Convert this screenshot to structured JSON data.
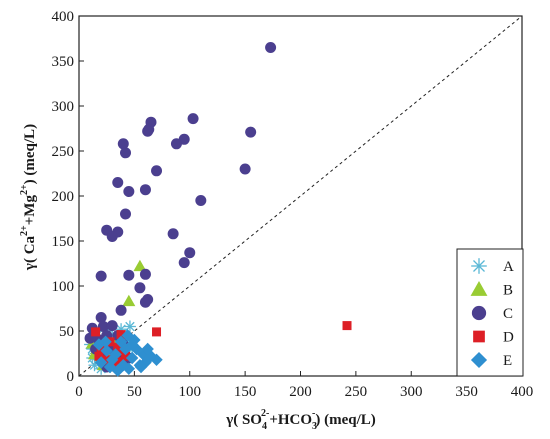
{
  "chart_data": {
    "type": "scatter",
    "title": "",
    "xlabel": {
      "prefix": "γ( SO",
      "sub1": "4",
      "sup1": "2-",
      "mid": "+HCO",
      "sub2": "3",
      "sup2": "-",
      "suffix": ") (meq/L)"
    },
    "ylabel": {
      "prefix": "γ( Ca",
      "sup1": "2+",
      "mid": "+Mg",
      "sup2": "2+",
      "suffix": ") (meq/L)"
    },
    "xlim": [
      0,
      400
    ],
    "ylim": [
      0,
      400
    ],
    "x_ticks": [
      0,
      50,
      100,
      150,
      200,
      250,
      300,
      350,
      400
    ],
    "y_ticks": [
      0,
      50,
      100,
      150,
      200,
      250,
      300,
      350,
      400
    ],
    "grid": false,
    "legend_position": "bottom-right",
    "reference_line": {
      "style": "dashed",
      "x": [
        0,
        400
      ],
      "y": [
        0,
        400
      ]
    },
    "series": [
      {
        "name": "A",
        "marker": "asterisk",
        "color": "#5bb8d6",
        "points": [
          [
            10,
            35
          ],
          [
            12,
            30
          ],
          [
            14,
            40
          ],
          [
            15,
            25
          ],
          [
            16,
            45
          ],
          [
            18,
            33
          ],
          [
            18,
            20
          ],
          [
            20,
            38
          ],
          [
            20,
            28
          ],
          [
            22,
            42
          ],
          [
            22,
            15
          ],
          [
            24,
            30
          ],
          [
            25,
            50
          ],
          [
            26,
            22
          ],
          [
            28,
            36
          ],
          [
            28,
            10
          ],
          [
            30,
            26
          ],
          [
            30,
            45
          ],
          [
            32,
            18
          ],
          [
            33,
            30
          ],
          [
            35,
            40
          ],
          [
            36,
            22
          ],
          [
            38,
            52
          ],
          [
            40,
            28
          ],
          [
            42,
            35
          ],
          [
            44,
            42
          ],
          [
            46,
            55
          ],
          [
            12,
            20
          ],
          [
            14,
            12
          ],
          [
            16,
            28
          ],
          [
            20,
            8
          ],
          [
            24,
            18
          ],
          [
            26,
            40
          ],
          [
            30,
            35
          ],
          [
            34,
            12
          ],
          [
            38,
            38
          ],
          [
            42,
            20
          ],
          [
            48,
            30
          ]
        ]
      },
      {
        "name": "B",
        "marker": "triangle",
        "color": "#99cc33",
        "points": [
          [
            55,
            122
          ],
          [
            45,
            83
          ],
          [
            12,
            36
          ],
          [
            18,
            28
          ],
          [
            20,
            22
          ],
          [
            22,
            32
          ],
          [
            24,
            25
          ],
          [
            26,
            18
          ],
          [
            28,
            28
          ],
          [
            30,
            20
          ],
          [
            32,
            36
          ],
          [
            14,
            24
          ],
          [
            16,
            30
          ],
          [
            22,
            12
          ],
          [
            26,
            34
          ],
          [
            30,
            30
          ],
          [
            34,
            24
          ]
        ]
      },
      {
        "name": "C",
        "marker": "circle",
        "color": "#4b3f8f",
        "points": [
          [
            173,
            365
          ],
          [
            65,
            282
          ],
          [
            103,
            286
          ],
          [
            63,
            274
          ],
          [
            40,
            258
          ],
          [
            62,
            272
          ],
          [
            155,
            271
          ],
          [
            95,
            263
          ],
          [
            88,
            258
          ],
          [
            42,
            248
          ],
          [
            150,
            230
          ],
          [
            70,
            228
          ],
          [
            35,
            215
          ],
          [
            45,
            205
          ],
          [
            60,
            207
          ],
          [
            110,
            195
          ],
          [
            42,
            180
          ],
          [
            25,
            162
          ],
          [
            35,
            160
          ],
          [
            30,
            155
          ],
          [
            85,
            158
          ],
          [
            100,
            137
          ],
          [
            20,
            111
          ],
          [
            45,
            112
          ],
          [
            60,
            113
          ],
          [
            95,
            126
          ],
          [
            55,
            98
          ],
          [
            62,
            85
          ],
          [
            60,
            82
          ],
          [
            20,
            65
          ],
          [
            22,
            55
          ],
          [
            12,
            53
          ],
          [
            30,
            56
          ],
          [
            38,
            73
          ],
          [
            25,
            45
          ],
          [
            18,
            40
          ],
          [
            35,
            45
          ],
          [
            28,
            30
          ],
          [
            15,
            30
          ],
          [
            40,
            35
          ],
          [
            20,
            20
          ],
          [
            32,
            12
          ],
          [
            45,
            20
          ],
          [
            10,
            42
          ],
          [
            38,
            25
          ],
          [
            25,
            10
          ]
        ]
      },
      {
        "name": "D",
        "marker": "square",
        "color": "#dd1f26",
        "points": [
          [
            242,
            56
          ],
          [
            70,
            49
          ],
          [
            15,
            49
          ],
          [
            38,
            46
          ],
          [
            20,
            30
          ],
          [
            35,
            32
          ],
          [
            40,
            28
          ],
          [
            25,
            18
          ],
          [
            30,
            10
          ],
          [
            32,
            20
          ],
          [
            36,
            16
          ],
          [
            42,
            22
          ],
          [
            18,
            22
          ],
          [
            28,
            38
          ]
        ]
      },
      {
        "name": "E",
        "marker": "diamond",
        "color": "#2e8fd0",
        "points": [
          [
            35,
            6
          ],
          [
            40,
            12
          ],
          [
            48,
            20
          ],
          [
            52,
            30
          ],
          [
            58,
            24
          ],
          [
            70,
            18
          ],
          [
            60,
            15
          ],
          [
            45,
            8
          ],
          [
            30,
            18
          ],
          [
            28,
            10
          ],
          [
            25,
            28
          ],
          [
            38,
            38
          ],
          [
            50,
            40
          ],
          [
            42,
            30
          ],
          [
            65,
            22
          ],
          [
            20,
            15
          ],
          [
            55,
            12
          ],
          [
            33,
            24
          ],
          [
            62,
            30
          ],
          [
            48,
            35
          ],
          [
            24,
            38
          ],
          [
            18,
            35
          ],
          [
            56,
            10
          ],
          [
            44,
            45
          ]
        ]
      }
    ]
  }
}
